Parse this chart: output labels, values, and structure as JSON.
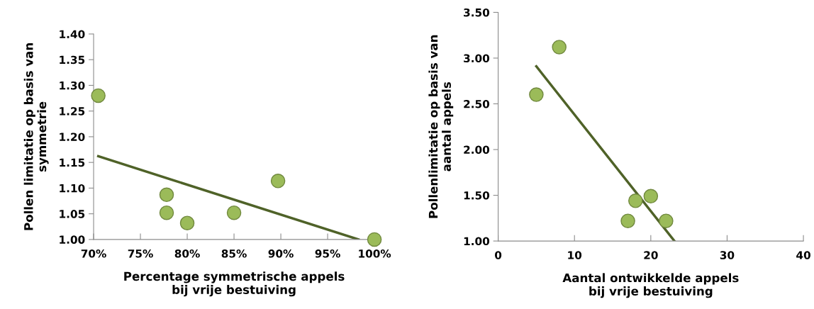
{
  "chart_data": [
    {
      "type": "scatter",
      "xlabel": "Percentage symmetrische appels\nbij vrije bestuiving",
      "ylabel": "Pollen limitatie op basis van\nsymmetrie",
      "grid": false,
      "xlim": [
        0.7,
        1.0
      ],
      "xticks": [
        {
          "value": 0.7,
          "label": "70%"
        },
        {
          "value": 0.75,
          "label": "75%"
        },
        {
          "value": 0.8,
          "label": "80%"
        },
        {
          "value": 0.85,
          "label": "85%"
        },
        {
          "value": 0.9,
          "label": "90%"
        },
        {
          "value": 0.95,
          "label": "95%"
        },
        {
          "value": 1.0,
          "label": "100%"
        }
      ],
      "ylim": [
        1.0,
        1.4
      ],
      "yticks": [
        {
          "value": 1.0,
          "label": "1.00"
        },
        {
          "value": 1.05,
          "label": "1.05"
        },
        {
          "value": 1.1,
          "label": "1.10"
        },
        {
          "value": 1.15,
          "label": "1.15"
        },
        {
          "value": 1.2,
          "label": "1.20"
        },
        {
          "value": 1.25,
          "label": "1.25"
        },
        {
          "value": 1.3,
          "label": "1.30"
        },
        {
          "value": 1.35,
          "label": "1.35"
        },
        {
          "value": 1.4,
          "label": "1.40"
        }
      ],
      "series": [
        {
          "color": "#9bbb59",
          "marker": "circle",
          "x": [
            0.705,
            0.778,
            0.778,
            0.8,
            0.85,
            0.897,
            1.0
          ],
          "values": [
            1.28,
            1.087,
            1.052,
            1.032,
            1.052,
            1.114,
            1.0
          ]
        },
        {
          "type": "line",
          "marker": "none",
          "color": "#4f6228",
          "x": [
            0.705,
            0.983
          ],
          "values": [
            1.162,
            1.0
          ]
        }
      ]
    },
    {
      "type": "scatter",
      "xlabel": "Aantal ontwikkelde appels\nbij vrije bestuiving",
      "ylabel": "Pollenlimitatie op basis van\naantal appels",
      "grid": false,
      "xlim": [
        0,
        40
      ],
      "xticks": [
        0,
        10,
        20,
        30,
        40
      ],
      "ylim": [
        1.0,
        3.5
      ],
      "yticks": [
        {
          "value": 1.0,
          "label": "1.00"
        },
        {
          "value": 1.5,
          "label": "1.50"
        },
        {
          "value": 2.0,
          "label": "2.00"
        },
        {
          "value": 2.5,
          "label": "2.50"
        },
        {
          "value": 3.0,
          "label": "3.00"
        },
        {
          "value": 3.5,
          "label": "3.50"
        }
      ],
      "series": [
        {
          "color": "#9bbb59",
          "marker": "circle",
          "x": [
            5,
            8,
            17,
            18,
            20,
            22
          ],
          "values": [
            2.6,
            3.12,
            1.22,
            1.44,
            1.49,
            1.22
          ]
        },
        {
          "type": "line",
          "marker": "none",
          "color": "#4f6228",
          "x": [
            5,
            23.1
          ],
          "values": [
            2.91,
            1.0
          ]
        }
      ]
    }
  ]
}
